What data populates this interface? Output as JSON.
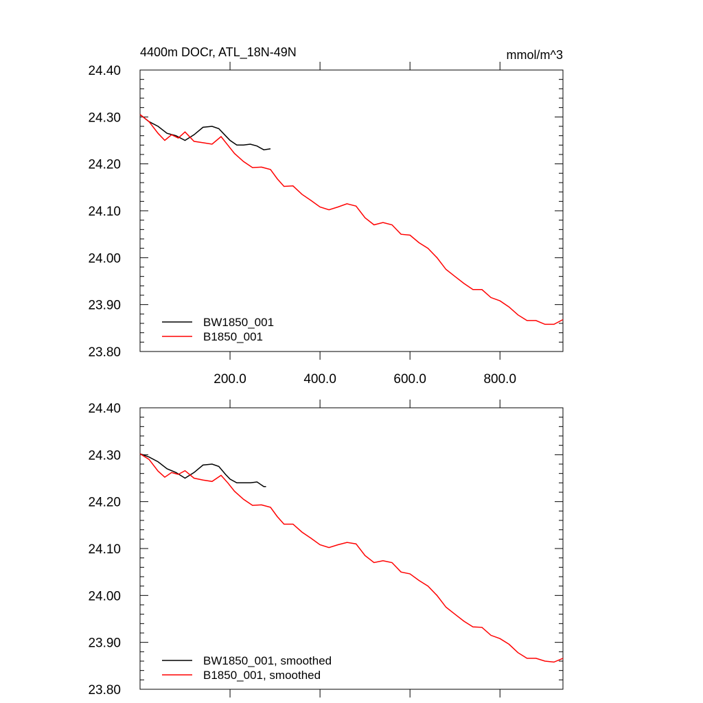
{
  "chart_data": [
    {
      "type": "line",
      "title": "4400m DOCr, ATL_18N-49N",
      "units": "mmol/m^3",
      "xlabel": "",
      "ylabel": "",
      "xlim": [
        0,
        940
      ],
      "ylim": [
        23.8,
        24.4
      ],
      "x_ticks": [
        200,
        400,
        600,
        800
      ],
      "x_tick_labels": [
        "200.0",
        "400.0",
        "600.0",
        "800.0"
      ],
      "y_ticks": [
        23.8,
        23.9,
        24.0,
        24.1,
        24.2,
        24.3,
        24.4
      ],
      "y_tick_labels": [
        "23.80",
        "23.90",
        "24.00",
        "24.10",
        "24.20",
        "24.30",
        "24.40"
      ],
      "legend_position": "bottom-left",
      "series": [
        {
          "name": "BW1850_001",
          "color": "#000000",
          "x": [
            0,
            20,
            40,
            60,
            80,
            100,
            120,
            140,
            160,
            175,
            190,
            200,
            215,
            230,
            245,
            260,
            275,
            290
          ],
          "y": [
            24.305,
            24.29,
            24.28,
            24.265,
            24.26,
            24.25,
            24.262,
            24.278,
            24.28,
            24.275,
            24.26,
            24.25,
            24.24,
            24.24,
            24.242,
            24.238,
            24.23,
            24.232
          ]
        },
        {
          "name": "B1850_001",
          "color": "#ff0000",
          "x": [
            0,
            20,
            40,
            55,
            70,
            85,
            100,
            120,
            140,
            160,
            180,
            195,
            210,
            230,
            250,
            270,
            290,
            305,
            320,
            340,
            360,
            380,
            400,
            420,
            440,
            460,
            480,
            500,
            520,
            540,
            560,
            580,
            600,
            620,
            640,
            660,
            680,
            700,
            720,
            740,
            760,
            780,
            800,
            820,
            840,
            860,
            880,
            900,
            920,
            940
          ],
          "y": [
            24.305,
            24.29,
            24.265,
            24.25,
            24.262,
            24.255,
            24.268,
            24.248,
            24.245,
            24.242,
            24.258,
            24.24,
            24.222,
            24.205,
            24.192,
            24.193,
            24.188,
            24.168,
            24.152,
            24.153,
            24.135,
            24.122,
            24.108,
            24.102,
            24.108,
            24.115,
            24.11,
            24.085,
            24.07,
            24.075,
            24.07,
            24.05,
            24.048,
            24.032,
            24.02,
            24.0,
            23.975,
            23.96,
            23.945,
            23.932,
            23.932,
            23.915,
            23.908,
            23.895,
            23.878,
            23.866,
            23.866,
            23.858,
            23.858,
            23.868
          ]
        }
      ]
    },
    {
      "type": "line",
      "title": "",
      "xlabel": "",
      "ylabel": "",
      "xlim": [
        0,
        940
      ],
      "ylim": [
        23.8,
        24.4
      ],
      "x_ticks": [
        200,
        400,
        600,
        800
      ],
      "x_tick_labels": [],
      "y_ticks": [
        23.8,
        23.9,
        24.0,
        24.1,
        24.2,
        24.3,
        24.4
      ],
      "y_tick_labels": [
        "23.80",
        "23.90",
        "24.00",
        "24.10",
        "24.20",
        "24.30",
        "24.40"
      ],
      "legend_position": "bottom-left",
      "series": [
        {
          "name": "BW1850_001, smoothed",
          "color": "#000000",
          "x": [
            0,
            20,
            40,
            60,
            80,
            100,
            120,
            140,
            160,
            175,
            190,
            200,
            215,
            230,
            245,
            260,
            275,
            280
          ],
          "y": [
            24.302,
            24.295,
            24.285,
            24.27,
            24.262,
            24.25,
            24.262,
            24.278,
            24.28,
            24.275,
            24.258,
            24.248,
            24.24,
            24.24,
            24.24,
            24.242,
            24.232,
            24.232
          ]
        },
        {
          "name": "B1850_001, smoothed",
          "color": "#ff0000",
          "x": [
            0,
            20,
            40,
            55,
            70,
            85,
            100,
            120,
            140,
            160,
            180,
            195,
            210,
            230,
            250,
            270,
            290,
            305,
            320,
            340,
            360,
            380,
            400,
            420,
            440,
            460,
            480,
            500,
            520,
            540,
            560,
            580,
            600,
            620,
            640,
            660,
            680,
            700,
            720,
            740,
            760,
            780,
            800,
            820,
            840,
            860,
            880,
            900,
            920,
            940
          ],
          "y": [
            24.302,
            24.29,
            24.265,
            24.252,
            24.262,
            24.258,
            24.266,
            24.25,
            24.246,
            24.243,
            24.256,
            24.24,
            24.222,
            24.205,
            24.192,
            24.193,
            24.188,
            24.168,
            24.152,
            24.152,
            24.135,
            24.122,
            24.108,
            24.102,
            24.108,
            24.113,
            24.11,
            24.085,
            24.07,
            24.074,
            24.07,
            24.05,
            24.046,
            24.032,
            24.02,
            24.0,
            23.975,
            23.96,
            23.945,
            23.933,
            23.932,
            23.915,
            23.908,
            23.896,
            23.878,
            23.866,
            23.866,
            23.86,
            23.858,
            23.866
          ]
        }
      ]
    }
  ]
}
